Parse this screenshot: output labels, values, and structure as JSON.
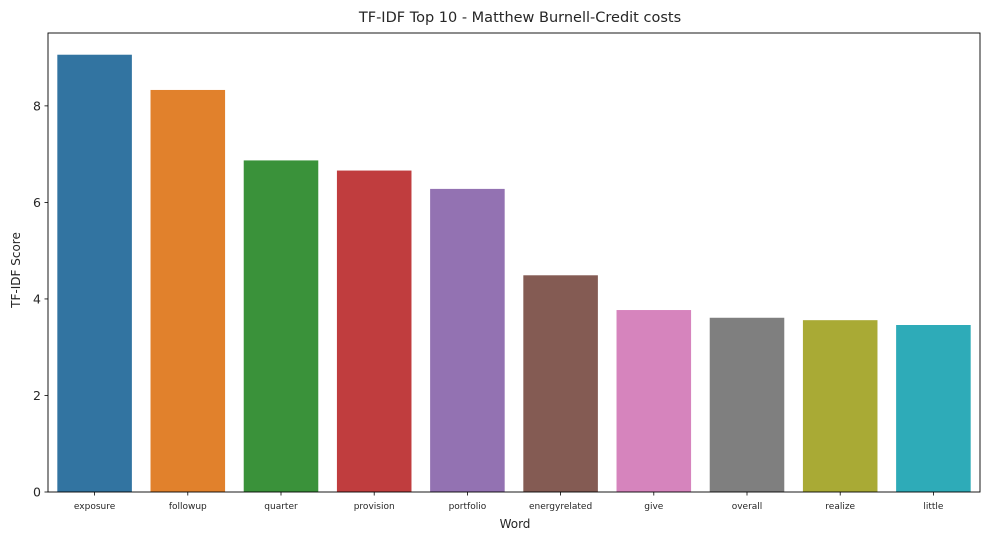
{
  "chart_data": {
    "type": "bar",
    "title": "TF-IDF Top 10 - Matthew Burnell-Credit costs",
    "xlabel": "Word",
    "ylabel": "TF-IDF Score",
    "categories": [
      "exposure",
      "followup",
      "quarter",
      "provision",
      "portfolio",
      "energyrelated",
      "give",
      "overall",
      "realize",
      "little"
    ],
    "values": [
      9.06,
      8.33,
      6.87,
      6.66,
      6.28,
      4.49,
      3.77,
      3.61,
      3.56,
      3.46
    ],
    "colors": [
      "#3274a1",
      "#e1812c",
      "#3a923a",
      "#c03d3e",
      "#9372b2",
      "#845b53",
      "#d684bd",
      "#7f7f7f",
      "#a9aa35",
      "#2eabb8"
    ],
    "ylim": [
      0,
      9.51
    ],
    "yticks": [
      0,
      2,
      4,
      6,
      8
    ],
    "grid": false,
    "legend": "none"
  }
}
